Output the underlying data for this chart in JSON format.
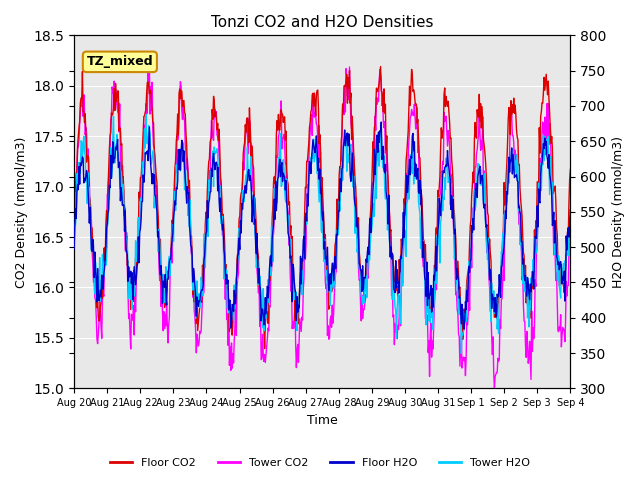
{
  "title": "Tonzi CO2 and H2O Densities",
  "xlabel": "Time",
  "ylabel_left": "CO2 Density (mmol/m3)",
  "ylabel_right": "H2O Density (mmol/m3)",
  "annotation_text": "TZ_mixed",
  "annotation_color": "#ffff99",
  "annotation_border": "#cc8800",
  "ylim_left": [
    15.0,
    18.5
  ],
  "ylim_right": [
    300,
    800
  ],
  "yticks_left": [
    15.0,
    15.5,
    16.0,
    16.5,
    17.0,
    17.5,
    18.0,
    18.5
  ],
  "yticks_right": [
    300,
    350,
    400,
    450,
    500,
    550,
    600,
    650,
    700,
    750,
    800
  ],
  "n_days": 15,
  "points_per_day": 48,
  "colors": {
    "floor_co2": "#dd0000",
    "tower_co2": "#ff00ff",
    "floor_h2o": "#0000cc",
    "tower_h2o": "#00ccff"
  },
  "legend_labels": [
    "Floor CO2",
    "Tower CO2",
    "Floor H2O",
    "Tower H2O"
  ],
  "background_color": "#e8e8e8",
  "grid_color": "#ffffff",
  "tick_labels": [
    "Aug 20",
    "Aug 21",
    "Aug 22",
    "Aug 23",
    "Aug 24",
    "Aug 25",
    "Aug 26",
    "Aug 27",
    "Aug 28",
    "Aug 29",
    "Aug 30",
    "Aug 31",
    "Sep 1",
    "Sep 2",
    "Sep 3",
    "Sep 4"
  ]
}
